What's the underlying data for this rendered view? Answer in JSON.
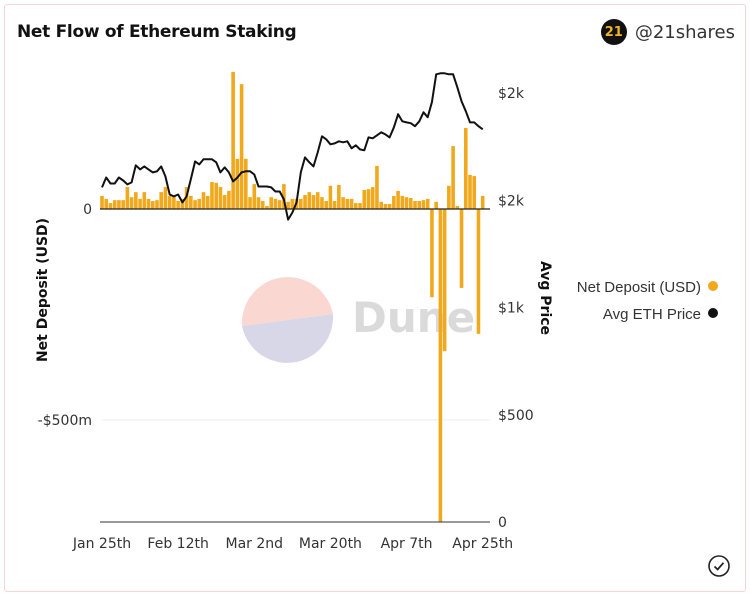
{
  "header": {
    "title": "Net Flow of Ethereum Staking",
    "brand_handle": "@21shares",
    "brand_logo_text": "21"
  },
  "watermark": "Dune",
  "colors": {
    "deposit": "#f0a81c",
    "price": "#111111",
    "grid": "#eeeeee"
  },
  "icons": {
    "verified": "check-circle-icon",
    "logo": "21shares-logo-icon"
  },
  "chart_data": {
    "type": "bar+line",
    "title": "Net Flow of Ethereum Staking",
    "ylabel": "Net Deposit (USD)",
    "y2label": "Avg Price",
    "x_ticks": [
      "Jan 25th",
      "Feb 12th",
      "Mar 2nd",
      "Mar 20th",
      "Apr 7th",
      "Apr 25th"
    ],
    "y_ticks": [
      {
        "value": 0,
        "label": "0"
      },
      {
        "value": -500,
        "label": "-$500m"
      }
    ],
    "y2_ticks": [
      {
        "value": 0,
        "label": "0"
      },
      {
        "value": 500,
        "label": "$500"
      },
      {
        "value": 1000,
        "label": "$1k"
      },
      {
        "value": 1500,
        "label": "$2k"
      },
      {
        "value": 2000,
        "label": "$2k"
      }
    ],
    "ylim": [
      -742,
      350
    ],
    "y2lim": [
      0,
      2300
    ],
    "y_unit": "USD millions",
    "legend": {
      "placement": "right",
      "entries": [
        "Net Deposit (USD)",
        "Avg ETH Price"
      ]
    },
    "grid": true,
    "series": [
      {
        "name": "Net Deposit (USD)",
        "type": "bar",
        "axis": "left",
        "values": [
          31,
          24,
          14,
          21,
          21,
          21,
          52,
          28,
          40,
          24,
          40,
          24,
          19,
          21,
          40,
          52,
          31,
          31,
          19,
          24,
          52,
          31,
          21,
          24,
          40,
          31,
          64,
          62,
          52,
          33,
          43,
          325,
          119,
          296,
          119,
          28,
          59,
          28,
          19,
          7,
          28,
          24,
          21,
          59,
          17,
          24,
          24,
          24,
          33,
          40,
          33,
          40,
          28,
          19,
          55,
          19,
          57,
          28,
          24,
          24,
          14,
          14,
          45,
          47,
          52,
          102,
          17,
          12,
          12,
          31,
          43,
          31,
          28,
          26,
          19,
          19,
          21,
          24,
          -209,
          17,
          -742,
          -337,
          55,
          149,
          7,
          -187,
          192,
          81,
          78,
          -296,
          31
        ]
      },
      {
        "name": "Avg ETH Price",
        "type": "line",
        "axis": "right",
        "values": [
          1560,
          1606,
          1578,
          1578,
          1606,
          1592,
          1574,
          1583,
          1663,
          1644,
          1658,
          1644,
          1630,
          1635,
          1658,
          1611,
          1527,
          1518,
          1527,
          1490,
          1518,
          1597,
          1681,
          1667,
          1691,
          1691,
          1691,
          1677,
          1630,
          1653,
          1630,
          1588,
          1606,
          1630,
          1635,
          1635,
          1620,
          1564,
          1564,
          1564,
          1560,
          1541,
          1541,
          1504,
          1410,
          1443,
          1490,
          1630,
          1700,
          1677,
          1658,
          1723,
          1798,
          1784,
          1761,
          1765,
          1775,
          1770,
          1775,
          1742,
          1756,
          1737,
          1733,
          1793,
          1789,
          1803,
          1817,
          1807,
          1793,
          1840,
          1901,
          1868,
          1863,
          1859,
          1845,
          1868,
          1910,
          1887,
          1957,
          2087,
          2092,
          2092,
          2087,
          2087,
          2027,
          1961,
          1915,
          1863,
          1863,
          1845,
          1831
        ]
      }
    ]
  }
}
